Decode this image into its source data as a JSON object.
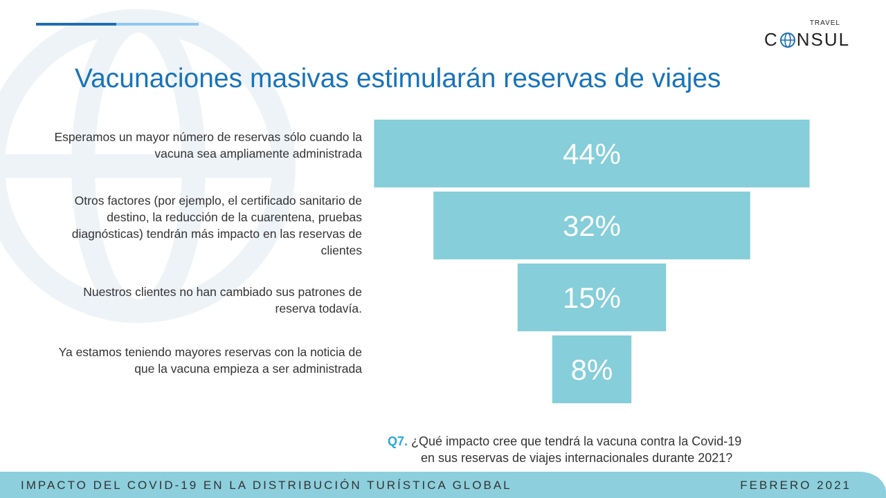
{
  "header": {
    "title": "Vacunaciones masivas estimularán reservas de viajes"
  },
  "logo": {
    "travel": "TRAVEL",
    "consul_left": "C",
    "consul_right": "NSUL"
  },
  "chart_data": {
    "type": "bar",
    "categories": [
      "Esperamos un mayor número de reservas sólo cuando la vacuna sea ampliamente administrada",
      "Otros factores (por ejemplo, el certificado sanitario de destino, la reducción de la cuarentena, pruebas diagnósticas) tendrán más impacto en las reservas de clientes",
      "Nuestros clientes no han cambiado sus patrones de reserva todavía.",
      "Ya estamos teniendo mayores reservas con la noticia de que la vacuna empieza a ser administrada"
    ],
    "values": [
      44,
      32,
      15,
      8
    ],
    "value_labels": [
      "44%",
      "32%",
      "15%",
      "8%"
    ],
    "title": "",
    "xlabel": "",
    "ylabel": "",
    "color": "#86ced9"
  },
  "question": {
    "number": "Q7.",
    "line1": "¿Qué impacto cree que tendrá la vacuna contra la Covid-19",
    "line2": "en sus reservas de viajes internacionales durante 2021?"
  },
  "footer": {
    "left": "IMPACTO DEL COVID-19 EN LA DISTRIBUCIÓN TURÍSTICA GLOBAL",
    "right": "FEBRERO 2021"
  },
  "colors": {
    "title": "#1773bb",
    "bar": "#86ced9",
    "footer": "#8dcfdd",
    "accent_dark": "#1f6db2",
    "accent_light": "#8ec9ee"
  }
}
